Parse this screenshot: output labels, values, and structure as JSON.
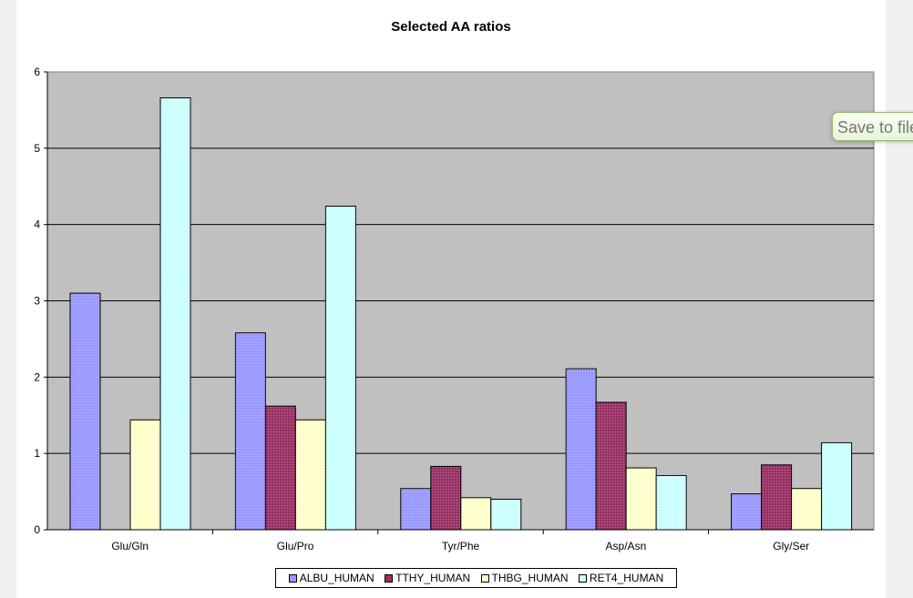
{
  "chart_data": {
    "type": "bar",
    "title": "Selected AA ratios",
    "categories": [
      "Glu/Gln",
      "Glu/Pro",
      "Tyr/Phe",
      "Asp/Asn",
      "Gly/Ser"
    ],
    "ylim": [
      0,
      6
    ],
    "yticks": [
      "0",
      "1",
      "2",
      "3",
      "4",
      "5",
      "6"
    ],
    "grid": true,
    "legend_position": "bottom",
    "series": [
      {
        "name": "ALBU_HUMAN",
        "color": "#9999ff",
        "values": [
          3.1,
          2.58,
          0.54,
          2.11,
          0.47
        ]
      },
      {
        "name": "TTHY_HUMAN",
        "color": "#993366",
        "values": [
          0,
          1.62,
          0.83,
          1.67,
          0.85
        ]
      },
      {
        "name": "THBG_HUMAN",
        "color": "#ffffcc",
        "values": [
          1.44,
          1.44,
          0.42,
          0.81,
          0.54
        ]
      },
      {
        "name": "RET4_HUMAN",
        "color": "#ccffff",
        "values": [
          5.66,
          4.24,
          0.4,
          0.71,
          1.14
        ]
      }
    ]
  },
  "tooltip": {
    "text": "Save to file"
  }
}
